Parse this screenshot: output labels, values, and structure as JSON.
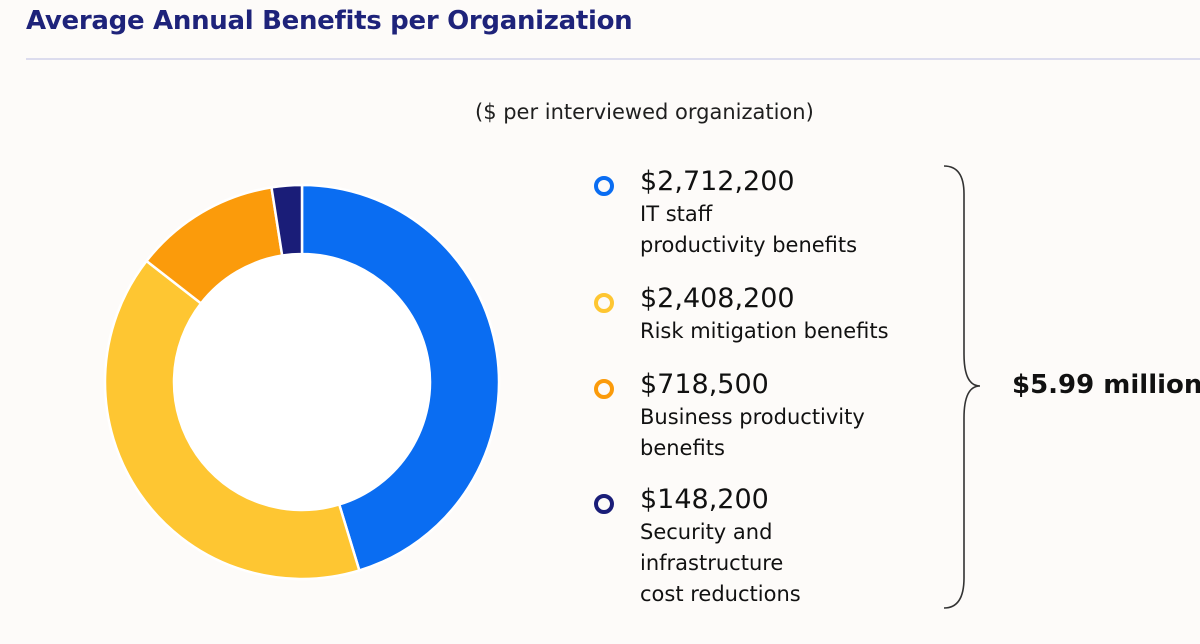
{
  "chart_data": {
    "type": "pie",
    "title": "Average Annual Benefits per Organization",
    "subtitle": "($ per interviewed organization)",
    "total_label": "$5.99 million",
    "slices": [
      {
        "value": 2712200,
        "value_label": "$2,712,200",
        "label_lines": [
          "IT staff",
          "productivity benefits"
        ],
        "color": "#0a6df2"
      },
      {
        "value": 2408200,
        "value_label": "$2,408,200",
        "label_lines": [
          "Risk mitigation benefits"
        ],
        "color": "#fec632"
      },
      {
        "value": 718500,
        "value_label": "$718,500",
        "label_lines": [
          "Business productivity",
          "benefits"
        ],
        "color": "#fb9b0b"
      },
      {
        "value": 148200,
        "value_label": "$148,200",
        "label_lines": [
          "Security and",
          "infrastructure",
          "cost reductions"
        ],
        "color": "#1a1d78"
      }
    ]
  }
}
